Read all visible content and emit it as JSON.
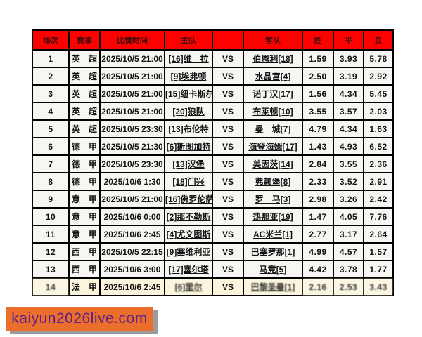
{
  "colors": {
    "header_bg": "#fb0200",
    "header_text": "#3c0b07",
    "row_bg": "#f7f6f3",
    "highlight_row_bg": "#faf5dc",
    "watermark_bg": "#ec6e2c",
    "watermark_text_color": "#5c2386",
    "border": "#000000"
  },
  "watermark": {
    "text": "kaiyun2026live.com"
  },
  "table": {
    "columns": [
      "场次",
      "赛事",
      "比赛时间",
      "主队",
      "",
      "客队",
      "胜",
      "平",
      "负"
    ],
    "matches": [
      {
        "no": "1",
        "league": "英　超",
        "time": "2025/10/5 21:00",
        "home": "[16]维　拉",
        "vs": "VS",
        "away": "伯恩利[18]",
        "win": "1.59",
        "draw": "3.93",
        "lose": "5.78",
        "highlight": false,
        "blurry": false
      },
      {
        "no": "2",
        "league": "英　超",
        "time": "2025/10/5 21:00",
        "home": "[9]埃弗顿",
        "vs": "VS",
        "away": "水晶宫[4]",
        "win": "2.50",
        "draw": "3.19",
        "lose": "2.92",
        "highlight": false,
        "blurry": false
      },
      {
        "no": "3",
        "league": "英　超",
        "time": "2025/10/5 21:00",
        "home": "[15]纽卡斯尔",
        "vs": "VS",
        "away": "诺丁汉[17]",
        "win": "1.56",
        "draw": "4.34",
        "lose": "5.45",
        "highlight": false,
        "blurry": false
      },
      {
        "no": "4",
        "league": "英　超",
        "time": "2025/10/5 21:00",
        "home": "[20]狼队",
        "vs": "VS",
        "away": "布莱顿[10]",
        "win": "3.55",
        "draw": "3.57",
        "lose": "2.03",
        "highlight": false,
        "blurry": false
      },
      {
        "no": "5",
        "league": "英　超",
        "time": "2025/10/5 23:30",
        "home": "[13]布伦特",
        "vs": "VS",
        "away": "曼　城[7]",
        "win": "4.79",
        "draw": "4.34",
        "lose": "1.63",
        "highlight": false,
        "blurry": false
      },
      {
        "no": "6",
        "league": "德　甲",
        "time": "2025/10/5 21:30",
        "home": "[6]斯图加特",
        "vs": "VS",
        "away": "海登海姆[17]",
        "win": "1.43",
        "draw": "4.93",
        "lose": "6.52",
        "highlight": false,
        "blurry": false
      },
      {
        "no": "7",
        "league": "德　甲",
        "time": "2025/10/5 23:30",
        "home": "[13]汉堡",
        "vs": "VS",
        "away": "美因茨[14]",
        "win": "2.84",
        "draw": "3.55",
        "lose": "2.36",
        "highlight": false,
        "blurry": false
      },
      {
        "no": "8",
        "league": "德　甲",
        "time": "2025/10/6 1:30",
        "home": "[18]门兴",
        "vs": "VS",
        "away": "弗赖堡[8]",
        "win": "2.33",
        "draw": "3.52",
        "lose": "2.91",
        "highlight": false,
        "blurry": false
      },
      {
        "no": "9",
        "league": "意　甲",
        "time": "2025/10/5 21:00",
        "home": "[16]佛罗伦萨",
        "vs": "VS",
        "away": "罗　马[3]",
        "win": "2.98",
        "draw": "3.26",
        "lose": "2.42",
        "highlight": false,
        "blurry": false
      },
      {
        "no": "10",
        "league": "意　甲",
        "time": "2025/10/6 0:00",
        "home": "[2]那不勒斯",
        "vs": "VS",
        "away": "热那亚[19]",
        "win": "1.47",
        "draw": "4.05",
        "lose": "7.76",
        "highlight": false,
        "blurry": false
      },
      {
        "no": "11",
        "league": "意　甲",
        "time": "2025/10/6 2:45",
        "home": "[4]尤文图斯",
        "vs": "VS",
        "away": "AC米兰[1]",
        "win": "2.77",
        "draw": "3.17",
        "lose": "2.64",
        "highlight": false,
        "blurry": false
      },
      {
        "no": "12",
        "league": "西　甲",
        "time": "2025/10/5 22:15",
        "home": "[9]塞维利亚",
        "vs": "VS",
        "away": "巴塞罗那[1]",
        "win": "4.99",
        "draw": "4.57",
        "lose": "1.57",
        "highlight": false,
        "blurry": false
      },
      {
        "no": "13",
        "league": "西　甲",
        "time": "2025/10/6 3:00",
        "home": "[17]塞尔塔",
        "vs": "VS",
        "away": "马竞[5]",
        "win": "4.42",
        "draw": "3.78",
        "lose": "1.77",
        "highlight": false,
        "blurry": false
      },
      {
        "no": "14",
        "league": "法　甲",
        "time": "2025/10/6 2:45",
        "home": "[6]里尔",
        "vs": "VS",
        "away": "巴黎圣曼[1]",
        "win": "2.16",
        "draw": "2.53",
        "lose": "3.43",
        "highlight": true,
        "blurry": true
      }
    ]
  }
}
